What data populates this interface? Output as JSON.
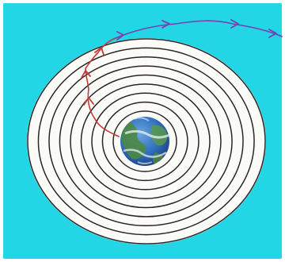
{
  "colors": {
    "page_background": "#ffffff",
    "frame_background": "#22d6e6",
    "disc_fill": "#fbfbf7",
    "ring_stroke": "#2b2626",
    "earth_ocean": "#2f6fbd",
    "earth_land": "#4e8a3a",
    "earth_cloud": "#eef3f7",
    "inner_path_color": "#c23a3a",
    "outer_path_color": "#7a3fb0"
  },
  "icons": {
    "planet": "earth-icon",
    "direction_marks": "arrowhead-icon"
  },
  "diagram": {
    "ring_count": 9,
    "inner_path_arrowheads": 3,
    "outer_path_arrowheads": 4,
    "labels": []
  }
}
